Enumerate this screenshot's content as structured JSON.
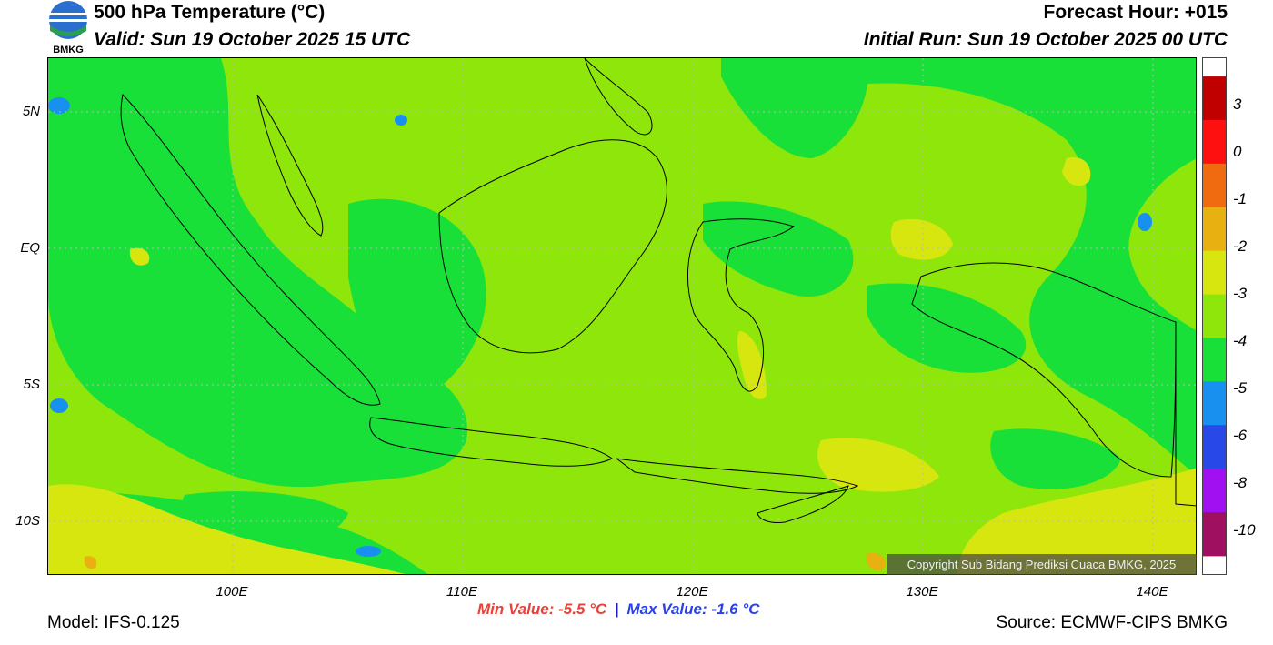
{
  "header": {
    "logo_text": "BMKG",
    "title": "500 hPa Temperature (°C)",
    "valid": "Valid: Sun 19 October 2025 15 UTC",
    "forecast_hour": "Forecast Hour: +015",
    "initial_run": "Initial Run: Sun 19 October 2025 00 UTC"
  },
  "map": {
    "lat_labels": [
      "5N",
      "EQ",
      "5S",
      "10S"
    ],
    "lon_labels": [
      "100E",
      "110E",
      "120E",
      "130E",
      "140E"
    ],
    "copyright": "Copyright Sub Bidang Prediksi Cuaca BMKG, 2025"
  },
  "colorbar": {
    "labels": [
      "3",
      "0",
      "-1",
      "-2",
      "-3",
      "-4",
      "-5",
      "-6",
      "-8",
      "-10"
    ],
    "colors": [
      "#c00000",
      "#ff1010",
      "#f06a10",
      "#e8b010",
      "#d8e610",
      "#8ee60a",
      "#18e038",
      "#1890f0",
      "#2848e8",
      "#a010f0",
      "#a01060"
    ]
  },
  "stats": {
    "min_label": "Min Value: -5.5 °C",
    "separator": "|",
    "max_label": "Max Value: -1.6 °C"
  },
  "footer": {
    "model": "Model: IFS-0.125",
    "source": "Source: ECMWF-CIPS BMKG"
  }
}
